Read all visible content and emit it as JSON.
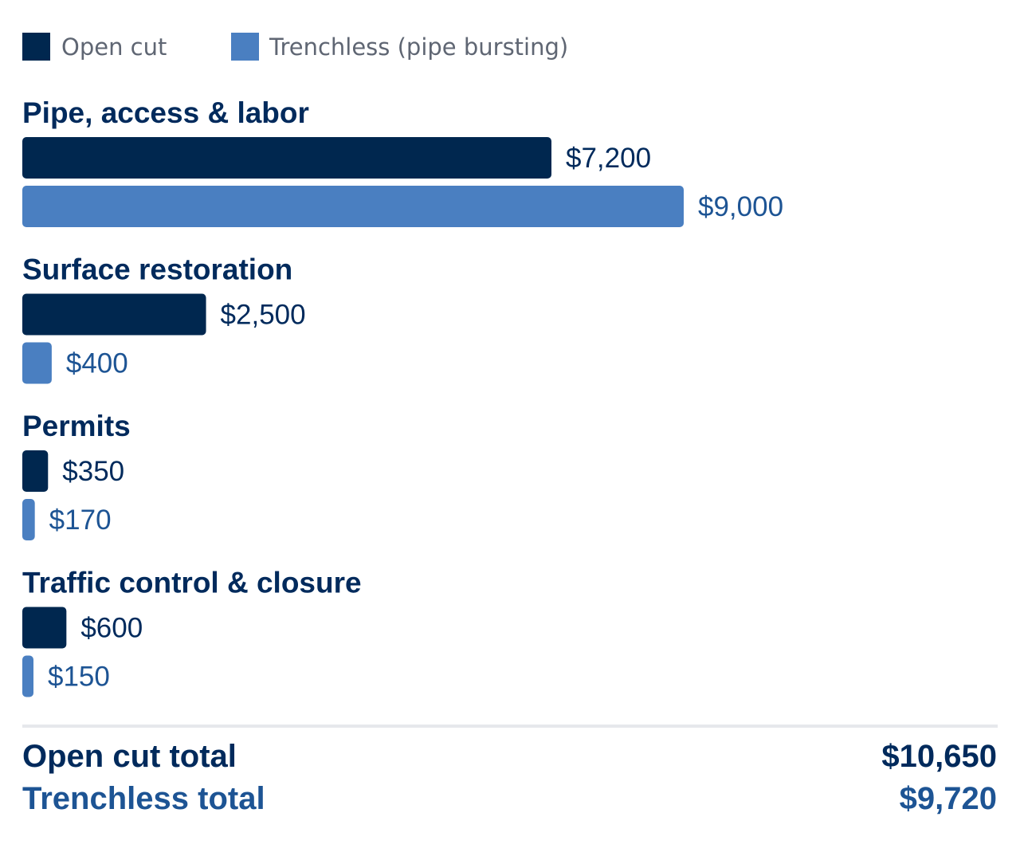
{
  "colors": {
    "open_cut": "#00274f",
    "trenchless": "#4a7fc1",
    "title_text": "#002a5c",
    "trenchless_text": "#1d5494",
    "legend_text": "#5f6673",
    "divider": "#e6e8ec"
  },
  "legend": {
    "open_cut": "Open cut",
    "trenchless": "Trenchless (pipe bursting)"
  },
  "chart_data": {
    "type": "bar",
    "orientation": "horizontal",
    "categories": [
      "Pipe, access & labor",
      "Surface restoration",
      "Permits",
      "Traffic control & closure"
    ],
    "series": [
      {
        "name": "Open cut",
        "values": [
          7200,
          2500,
          350,
          600
        ],
        "labels": [
          "$7,200",
          "$2,500",
          "$350",
          "$600"
        ]
      },
      {
        "name": "Trenchless (pipe bursting)",
        "values": [
          9000,
          400,
          170,
          150
        ],
        "labels": [
          "$9,000",
          "$400",
          "$170",
          "$150"
        ]
      }
    ],
    "value_max": 9000,
    "grid": false,
    "legend_position": "top-left"
  },
  "totals": {
    "open_cut_label": "Open cut total",
    "open_cut_value": "$10,650",
    "trenchless_label": "Trenchless total",
    "trenchless_value": "$9,720"
  }
}
